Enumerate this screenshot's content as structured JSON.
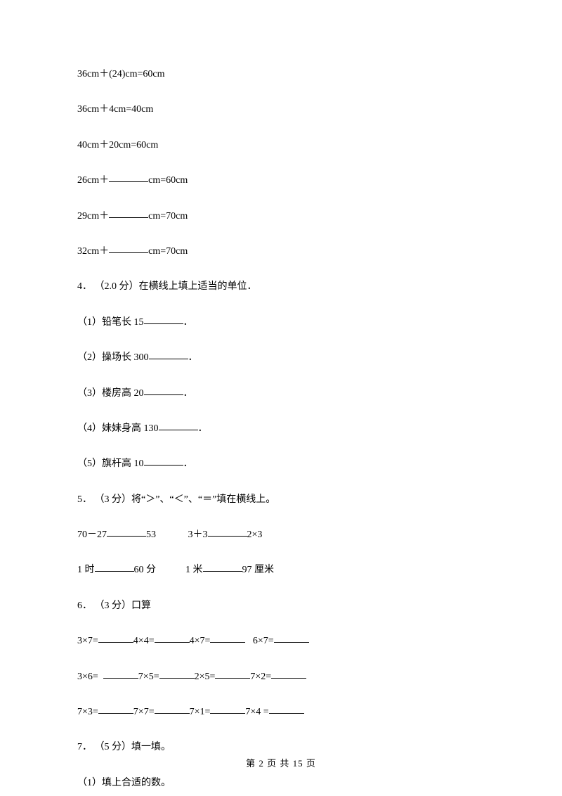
{
  "lines": {
    "l1": "36cm＋(24)cm=60cm",
    "l2": "36cm＋4cm=40cm",
    "l3": "40cm＋20cm=60cm",
    "l4a": "26cm＋",
    "l4b": "cm=60cm",
    "l5a": "29cm＋",
    "l5b": "cm=70cm",
    "l6a": "32cm＋",
    "l6b": "cm=70cm",
    "q4": "4． （2.0 分）在横线上填上适当的单位．",
    "q4_1a": "（1）铅笔长 15",
    "q4_1b": "．",
    "q4_2a": "（2）操场长 300",
    "q4_2b": "．",
    "q4_3a": "（3）楼房高 20",
    "q4_3b": "．",
    "q4_4a": "（4）妹妹身高 130",
    "q4_4b": "．",
    "q4_5a": "（5）旗杆高 10",
    "q4_5b": "．",
    "q5": "5． （3 分）将“＞”、“＜”、“＝”填在横线上。",
    "q5_r1a": "70－27",
    "q5_r1b": "53             3＋3",
    "q5_r1c": "2×3",
    "q5_r2a": "1 时",
    "q5_r2b": "60 分            1 米",
    "q5_r2c": "97 厘米",
    "q6": "6． （3 分）口算",
    "q6_r1a": "3×7=",
    "q6_r1b": "4×4=",
    "q6_r1c": "4×7=",
    "q6_r1d": "   6×7=",
    "q6_r2a": "3×6=  ",
    "q6_r2b": "7×5=",
    "q6_r2c": "2×5=",
    "q6_r2d": "7×2=",
    "q6_r3a": "7×3=",
    "q6_r3b": "7×7=",
    "q6_r3c": "7×1=",
    "q6_r3d": "7×4 =",
    "q7": "7． （5 分）填一填。",
    "q7_1": "（1）填上合适的数。"
  },
  "footer": "第 2 页 共 15 页"
}
